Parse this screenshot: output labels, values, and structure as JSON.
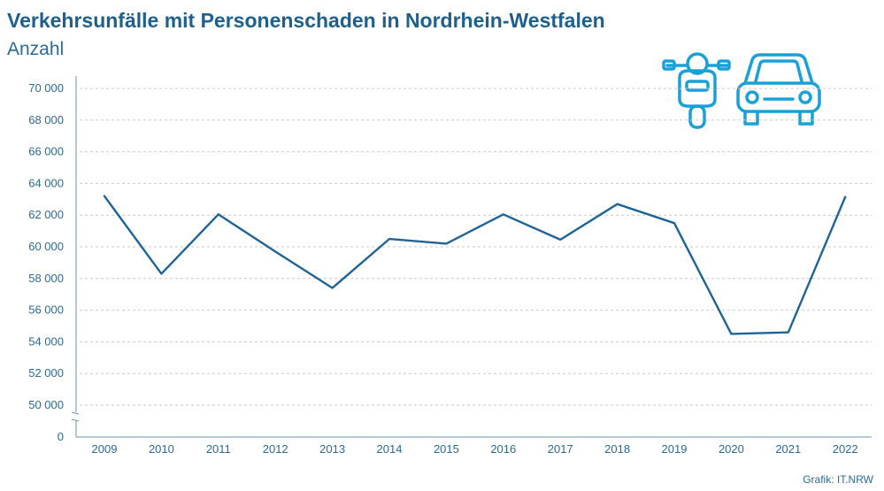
{
  "header": {
    "title": "Verkehrsunfälle mit Personenschaden in Nordrhein-Westfalen",
    "subtitle": "Anzahl"
  },
  "source": "Grafik: IT.NRW",
  "colors": {
    "line": "#1f6496",
    "text": "#2c6a94",
    "title": "#1f5f8b",
    "icon": "#1aa0d8",
    "grid": "#c9c9c9"
  },
  "icons": [
    "motorcycle-icon",
    "car-icon"
  ],
  "chart_data": {
    "type": "line",
    "title": "Verkehrsunfälle mit Personenschaden in Nordrhein-Westfalen",
    "subtitle": "Anzahl",
    "xlabel": "",
    "ylabel": "",
    "categories": [
      "2009",
      "2010",
      "2011",
      "2012",
      "2013",
      "2014",
      "2015",
      "2016",
      "2017",
      "2018",
      "2019",
      "2020",
      "2021",
      "2022"
    ],
    "series": [
      {
        "values": [
          63200,
          58300,
          62050,
          59700,
          57400,
          60500,
          60200,
          62050,
          60450,
          62700,
          61500,
          54500,
          54600,
          63150
        ]
      }
    ],
    "yticks": [
      0,
      50000,
      52000,
      54000,
      56000,
      58000,
      60000,
      62000,
      64000,
      66000,
      68000,
      70000
    ],
    "ytick_labels": [
      "0",
      "50 000",
      "52 000",
      "54 000",
      "56 000",
      "58 000",
      "60 000",
      "62 000",
      "64 000",
      "66 000",
      "68 000",
      "70 000"
    ],
    "ylim": [
      0,
      70000
    ],
    "axis_break": "between 0 and 50 000",
    "grid": "horizontal dashed",
    "legend": "none"
  }
}
